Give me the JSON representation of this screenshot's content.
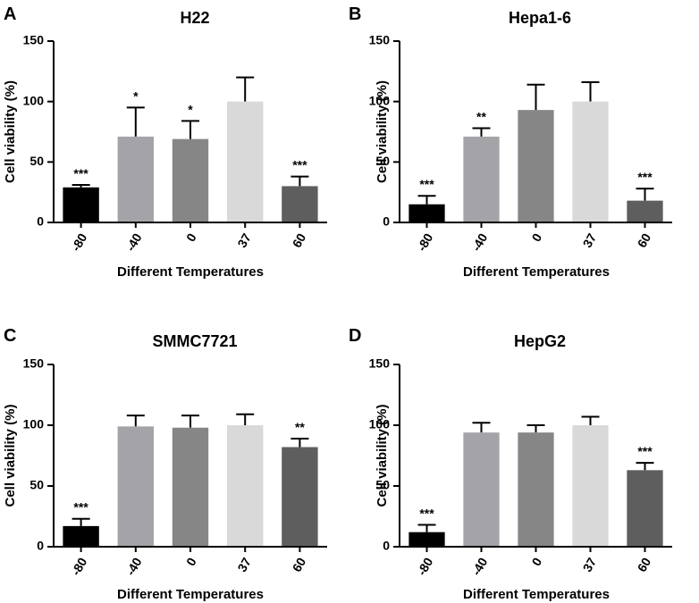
{
  "colors": {
    "-80": "#000000",
    "-40": "#a4a4a8",
    "0": "#868686",
    "37": "#d9d9d9",
    "60": "#5e5e5e",
    "axis": "#000000"
  },
  "chart_data": [
    {
      "type": "bar",
      "panel": "A",
      "title": "H22",
      "xlabel": "Different Temperatures",
      "ylabel": "Cell viability (%)",
      "ylim": [
        0,
        150
      ],
      "yticks": [
        0,
        50,
        100,
        150
      ],
      "categories": [
        "-80",
        "-40",
        "0",
        "37",
        "60"
      ],
      "values": [
        29,
        71,
        69,
        100,
        30
      ],
      "errors": [
        2,
        24,
        15,
        20,
        8
      ],
      "significance": [
        "***",
        "*",
        "*",
        "",
        "***"
      ]
    },
    {
      "type": "bar",
      "panel": "B",
      "title": "Hepa1-6",
      "xlabel": "Different Temperatures",
      "ylabel": "Cell viability (%)",
      "ylim": [
        0,
        150
      ],
      "yticks": [
        0,
        50,
        100,
        150
      ],
      "categories": [
        "-80",
        "-40",
        "0",
        "37",
        "60"
      ],
      "values": [
        15,
        71,
        93,
        100,
        18
      ],
      "errors": [
        7,
        7,
        21,
        16,
        10
      ],
      "significance": [
        "***",
        "**",
        "",
        "",
        "***"
      ]
    },
    {
      "type": "bar",
      "panel": "C",
      "title": "SMMC7721",
      "xlabel": "Different Temperatures",
      "ylabel": "Cell viability (%)",
      "ylim": [
        0,
        150
      ],
      "yticks": [
        0,
        50,
        100,
        150
      ],
      "categories": [
        "-80",
        "-40",
        "0",
        "37",
        "60"
      ],
      "values": [
        17,
        99,
        98,
        100,
        82
      ],
      "errors": [
        6,
        9,
        10,
        9,
        7
      ],
      "significance": [
        "***",
        "",
        "",
        "",
        "**"
      ]
    },
    {
      "type": "bar",
      "panel": "D",
      "title": "HepG2",
      "xlabel": "Different Temperatures",
      "ylabel": "Cell viability (%)",
      "ylim": [
        0,
        150
      ],
      "yticks": [
        0,
        50,
        100,
        150
      ],
      "categories": [
        "-80",
        "-40",
        "0",
        "37",
        "60"
      ],
      "values": [
        12,
        94,
        94,
        100,
        63
      ],
      "errors": [
        6,
        8,
        6,
        7,
        6
      ],
      "significance": [
        "***",
        "",
        "",
        "",
        "***"
      ]
    }
  ]
}
